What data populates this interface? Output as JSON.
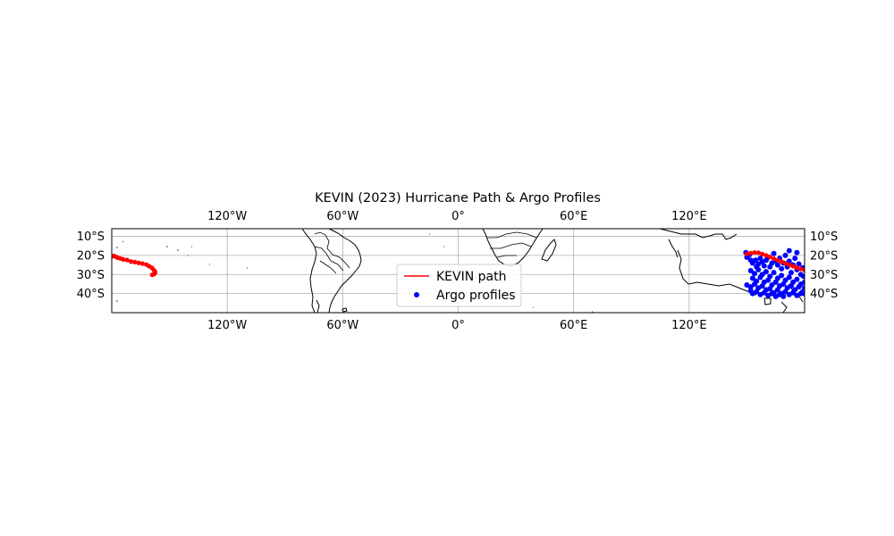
{
  "figure": {
    "title": "KEVIN (2023) Hurricane Path & Argo Profiles",
    "legend": {
      "placement": "lower-center",
      "items": [
        {
          "label": "KEVIN path",
          "marker": "line",
          "color": "#ff0000"
        },
        {
          "label": "Argo profiles",
          "marker": "dot",
          "color": "#0000ff"
        }
      ]
    }
  },
  "chart_data": {
    "type": "scatter",
    "projection": "PlateCarree",
    "xlim": [
      -180,
      180
    ],
    "ylim": [
      -50,
      -6
    ],
    "grid": true,
    "x_ticks": [
      {
        "value": -120,
        "label": "120°W"
      },
      {
        "value": -60,
        "label": "60°W"
      },
      {
        "value": 0,
        "label": "0°"
      },
      {
        "value": 60,
        "label": "60°E"
      },
      {
        "value": 120,
        "label": "120°E"
      }
    ],
    "y_ticks": [
      {
        "value": -10,
        "label": "10°S"
      },
      {
        "value": -20,
        "label": "20°S"
      },
      {
        "value": -30,
        "label": "30°S"
      },
      {
        "value": -40,
        "label": "40°S"
      }
    ],
    "path": {
      "name": "KEVIN path",
      "color": "#ff0000",
      "segments": [
        [
          [
            -180,
            -20.5
          ],
          [
            -179,
            -20.3
          ],
          [
            -178,
            -20.6
          ],
          [
            -177,
            -21.2
          ],
          [
            -175.5,
            -21.6
          ],
          [
            -174,
            -22.1
          ],
          [
            -172,
            -22.4
          ],
          [
            -170,
            -23.2
          ],
          [
            -168,
            -23.5
          ],
          [
            -166,
            -23.9
          ],
          [
            -164,
            -24.3
          ],
          [
            -162,
            -24.8
          ],
          [
            -160.5,
            -25.7
          ],
          [
            -159,
            -26.6
          ],
          [
            -158,
            -27.8
          ],
          [
            -157.5,
            -28.6
          ],
          [
            -157.5,
            -29.2
          ],
          [
            -158,
            -29.8
          ],
          [
            -159,
            -30.2
          ]
        ],
        [
          [
            150,
            -19.2
          ],
          [
            152,
            -18.8
          ],
          [
            154,
            -18.5
          ],
          [
            156,
            -18.6
          ],
          [
            158,
            -19.3
          ],
          [
            160,
            -20.0
          ],
          [
            162,
            -20.8
          ],
          [
            164,
            -21.7
          ],
          [
            166,
            -22.5
          ],
          [
            168,
            -23.3
          ],
          [
            170,
            -24.1
          ],
          [
            172,
            -24.9
          ],
          [
            174,
            -25.6
          ],
          [
            176,
            -26.4
          ],
          [
            178,
            -27.1
          ],
          [
            180,
            -27.8
          ]
        ]
      ]
    },
    "argo_profiles": {
      "name": "Argo profiles",
      "color": "#0000ff",
      "points": [
        [
          149.5,
          -18.5
        ],
        [
          150,
          -21
        ],
        [
          151.5,
          -19.5
        ],
        [
          152,
          -22.5
        ],
        [
          153,
          -24
        ],
        [
          154.5,
          -22.5
        ],
        [
          155,
          -26
        ],
        [
          156,
          -24.5
        ],
        [
          157,
          -21.5
        ],
        [
          158,
          -23.5
        ],
        [
          159,
          -25.5
        ],
        [
          160,
          -22.5
        ],
        [
          161,
          -21
        ],
        [
          162,
          -26
        ],
        [
          163,
          -24
        ],
        [
          164,
          -19
        ],
        [
          165,
          -23
        ],
        [
          166,
          -25
        ],
        [
          167,
          -21.5
        ],
        [
          168,
          -27
        ],
        [
          169,
          -24
        ],
        [
          170,
          -20
        ],
        [
          171,
          -26
        ],
        [
          172,
          -23
        ],
        [
          173,
          -29
        ],
        [
          174,
          -25
        ],
        [
          175,
          -21.5
        ],
        [
          176,
          -27.5
        ],
        [
          177,
          -24.5
        ],
        [
          178,
          -30
        ],
        [
          179,
          -26.5
        ],
        [
          172,
          -17.5
        ],
        [
          176,
          -18.5
        ],
        [
          152,
          -28
        ],
        [
          154,
          -29.5
        ],
        [
          156,
          -27.5
        ],
        [
          158,
          -30
        ],
        [
          160,
          -28.5
        ],
        [
          162,
          -31
        ],
        [
          164,
          -29
        ],
        [
          166,
          -32
        ],
        [
          168,
          -30.5
        ],
        [
          170,
          -33
        ],
        [
          172,
          -31.5
        ],
        [
          174,
          -34
        ],
        [
          176,
          -32.5
        ],
        [
          178,
          -35
        ],
        [
          153,
          -32
        ],
        [
          155,
          -33.5
        ],
        [
          157,
          -31.5
        ],
        [
          159,
          -34
        ],
        [
          161,
          -33
        ],
        [
          163,
          -35.5
        ],
        [
          165,
          -34
        ],
        [
          167,
          -36
        ],
        [
          169,
          -35
        ],
        [
          171,
          -37
        ],
        [
          173,
          -36
        ],
        [
          175,
          -38
        ],
        [
          177,
          -36.5
        ],
        [
          179,
          -39
        ],
        [
          150,
          -35.5
        ],
        [
          152,
          -36.5
        ],
        [
          154,
          -35
        ],
        [
          156,
          -37
        ],
        [
          158,
          -36
        ],
        [
          160,
          -38
        ],
        [
          162,
          -37.5
        ],
        [
          164,
          -39.5
        ],
        [
          166,
          -38
        ],
        [
          168,
          -40
        ],
        [
          170,
          -39
        ],
        [
          172,
          -40.5
        ],
        [
          174,
          -39.5
        ],
        [
          176,
          -41
        ],
        [
          178,
          -40
        ],
        [
          152,
          -38.5
        ],
        [
          153,
          -40
        ],
        [
          155,
          -39
        ],
        [
          157,
          -40.5
        ],
        [
          159,
          -39.5
        ],
        [
          161,
          -41
        ],
        [
          163,
          -40
        ],
        [
          165,
          -41.5
        ],
        [
          167,
          -40.5
        ],
        [
          169,
          -41.5
        ],
        [
          180,
          -34
        ],
        [
          180,
          -37
        ],
        [
          180,
          -40
        ],
        [
          179.5,
          -31
        ]
      ]
    }
  }
}
